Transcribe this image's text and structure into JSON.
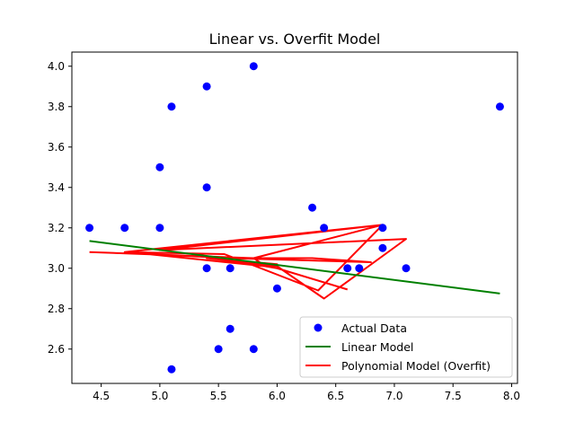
{
  "chart_data": {
    "type": "scatter",
    "title": "Linear vs. Overfit Model",
    "xlabel": "",
    "ylabel": "",
    "xlim": [
      4.25,
      8.05
    ],
    "ylim": [
      2.43,
      4.07
    ],
    "x_ticks": [
      4.5,
      5.0,
      5.5,
      6.0,
      6.5,
      7.0,
      7.5,
      8.0
    ],
    "x_tick_labels": [
      "4.5",
      "5.0",
      "5.5",
      "6.0",
      "6.5",
      "7.0",
      "7.5",
      "8.0"
    ],
    "y_ticks": [
      2.6,
      2.8,
      3.0,
      3.2,
      3.4,
      3.6,
      3.8,
      4.0
    ],
    "y_tick_labels": [
      "2.6",
      "2.8",
      "3.0",
      "3.2",
      "3.4",
      "3.6",
      "3.8",
      "4.0"
    ],
    "grid": false,
    "legend_position": "lower-right",
    "series": [
      {
        "name": "Actual Data",
        "kind": "scatter",
        "color": "#0000ff",
        "points": [
          [
            4.4,
            3.2
          ],
          [
            4.7,
            3.2
          ],
          [
            5.0,
            3.2
          ],
          [
            5.0,
            3.5
          ],
          [
            5.1,
            3.8
          ],
          [
            5.1,
            2.5
          ],
          [
            5.4,
            3.9
          ],
          [
            5.4,
            3.4
          ],
          [
            5.4,
            3.0
          ],
          [
            5.5,
            2.6
          ],
          [
            5.6,
            3.0
          ],
          [
            5.6,
            2.7
          ],
          [
            5.8,
            4.0
          ],
          [
            5.8,
            2.6
          ],
          [
            6.0,
            2.9
          ],
          [
            6.3,
            3.3
          ],
          [
            6.4,
            3.2
          ],
          [
            6.6,
            3.0
          ],
          [
            6.7,
            3.0
          ],
          [
            6.9,
            3.2
          ],
          [
            6.9,
            3.1
          ],
          [
            7.1,
            3.0
          ],
          [
            7.9,
            3.8
          ]
        ]
      },
      {
        "name": "Linear Model",
        "kind": "line",
        "color": "#008000",
        "points": [
          [
            4.4,
            3.135
          ],
          [
            7.9,
            2.875
          ]
        ]
      },
      {
        "name": "Polynomial Model (Overfit)",
        "kind": "line",
        "color": "#ff0000",
        "points": [
          [
            4.4,
            3.08
          ],
          [
            5.8,
            3.05
          ],
          [
            6.9,
            3.215
          ],
          [
            6.35,
            2.89
          ],
          [
            5.55,
            3.07
          ],
          [
            4.7,
            3.08
          ],
          [
            6.9,
            3.215
          ],
          [
            5.0,
            3.09
          ],
          [
            7.1,
            3.145
          ],
          [
            6.4,
            2.85
          ],
          [
            6.0,
            3.01
          ],
          [
            5.4,
            3.05
          ],
          [
            6.0,
            3.02
          ],
          [
            5.9,
            3.01
          ],
          [
            5.8,
            3.05
          ],
          [
            6.3,
            3.05
          ],
          [
            6.8,
            3.03
          ],
          [
            5.6,
            3.05
          ],
          [
            4.9,
            3.07
          ],
          [
            5.9,
            3.01
          ],
          [
            6.0,
            3.0
          ],
          [
            6.6,
            2.895
          ]
        ]
      }
    ]
  }
}
